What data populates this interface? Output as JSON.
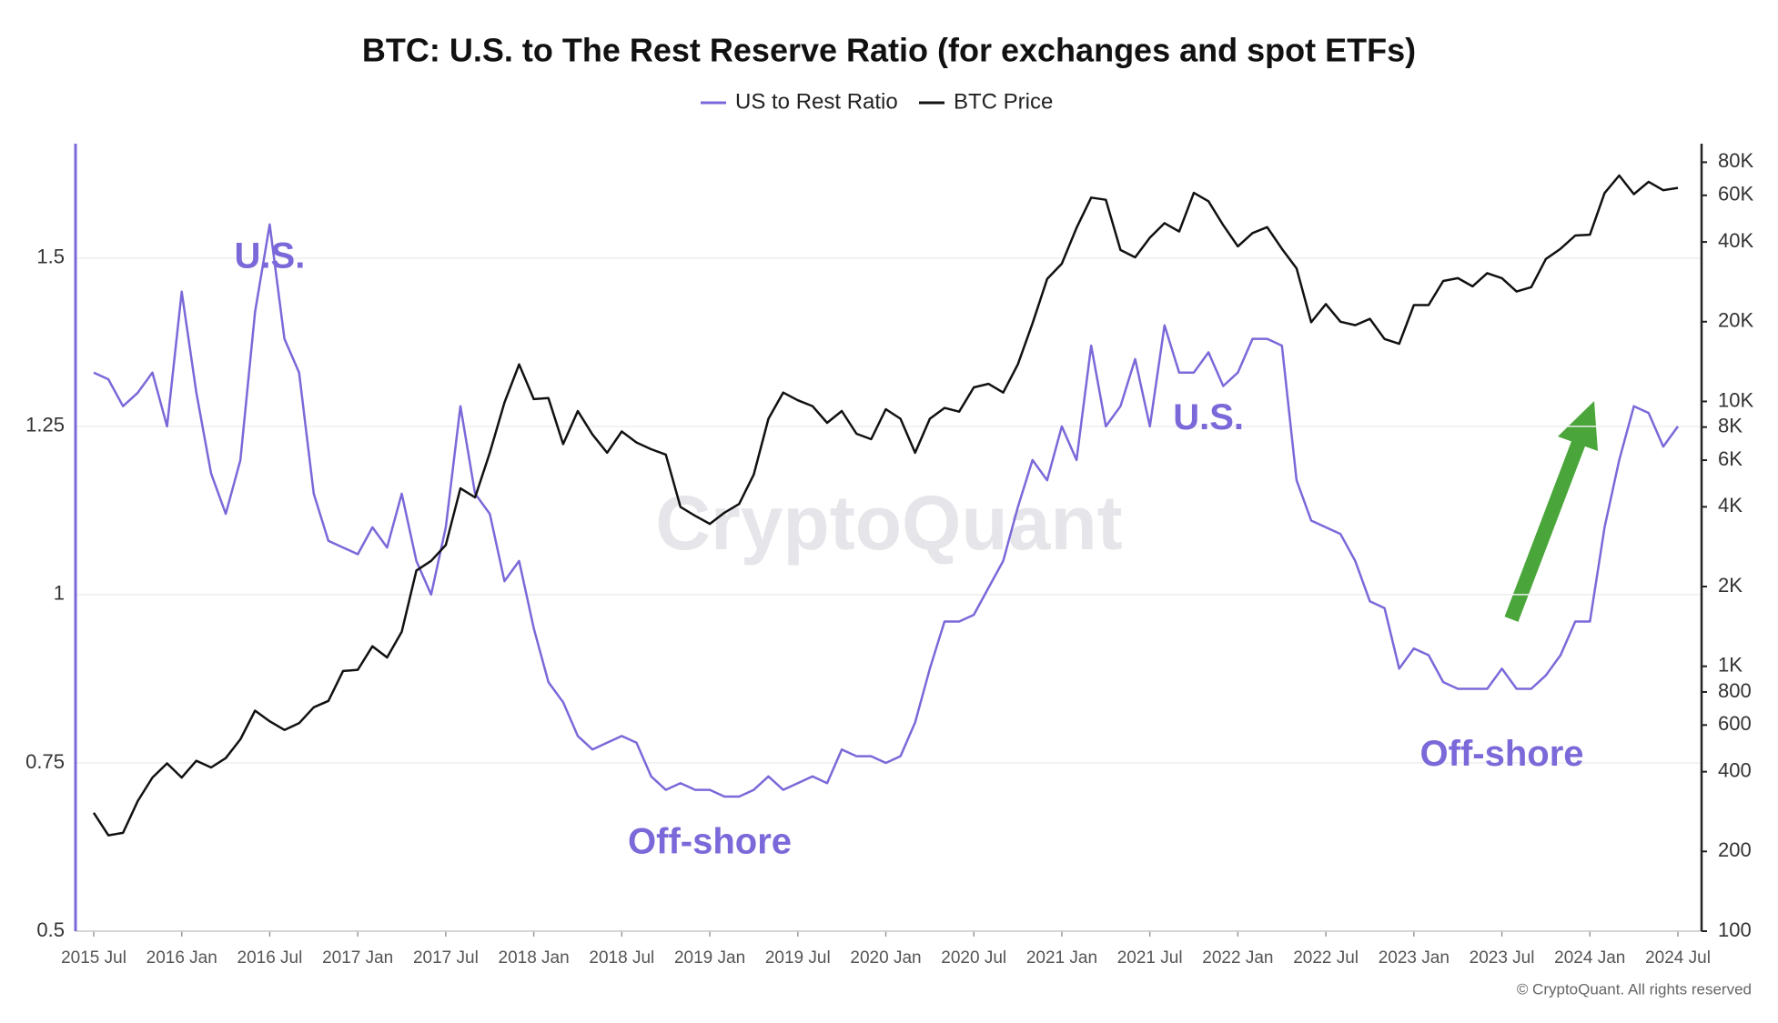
{
  "chart_data": {
    "type": "line",
    "title": "BTC: U.S. to The Rest Reserve Ratio (for exchanges and spot ETFs)",
    "legend": "top",
    "x": [
      "2015-07",
      "2015-08",
      "2015-09",
      "2015-10",
      "2015-11",
      "2015-12",
      "2016-01",
      "2016-02",
      "2016-03",
      "2016-04",
      "2016-05",
      "2016-06",
      "2016-07",
      "2016-08",
      "2016-09",
      "2016-10",
      "2016-11",
      "2016-12",
      "2017-01",
      "2017-02",
      "2017-03",
      "2017-04",
      "2017-05",
      "2017-06",
      "2017-07",
      "2017-08",
      "2017-09",
      "2017-10",
      "2017-11",
      "2017-12",
      "2018-01",
      "2018-02",
      "2018-03",
      "2018-04",
      "2018-05",
      "2018-06",
      "2018-07",
      "2018-08",
      "2018-09",
      "2018-10",
      "2018-11",
      "2018-12",
      "2019-01",
      "2019-02",
      "2019-03",
      "2019-04",
      "2019-05",
      "2019-06",
      "2019-07",
      "2019-08",
      "2019-09",
      "2019-10",
      "2019-11",
      "2019-12",
      "2020-01",
      "2020-02",
      "2020-03",
      "2020-04",
      "2020-05",
      "2020-06",
      "2020-07",
      "2020-08",
      "2020-09",
      "2020-10",
      "2020-11",
      "2020-12",
      "2021-01",
      "2021-02",
      "2021-03",
      "2021-04",
      "2021-05",
      "2021-06",
      "2021-07",
      "2021-08",
      "2021-09",
      "2021-10",
      "2021-11",
      "2021-12",
      "2022-01",
      "2022-02",
      "2022-03",
      "2022-04",
      "2022-05",
      "2022-06",
      "2022-07",
      "2022-08",
      "2022-09",
      "2022-10",
      "2022-11",
      "2022-12",
      "2023-01",
      "2023-02",
      "2023-03",
      "2023-04",
      "2023-05",
      "2023-06",
      "2023-07",
      "2023-08",
      "2023-09",
      "2023-10",
      "2023-11",
      "2023-12",
      "2024-01",
      "2024-02",
      "2024-03",
      "2024-04",
      "2024-05",
      "2024-06",
      "2024-07"
    ],
    "series": [
      {
        "name": "US to Rest Ratio",
        "color": "#7b68d9",
        "axis": "y",
        "values": [
          1.33,
          1.32,
          1.28,
          1.3,
          1.33,
          1.25,
          1.45,
          1.3,
          1.18,
          1.12,
          1.2,
          1.42,
          1.55,
          1.38,
          1.33,
          1.15,
          1.08,
          1.07,
          1.06,
          1.1,
          1.07,
          1.15,
          1.05,
          1.0,
          1.1,
          1.28,
          1.15,
          1.12,
          1.02,
          1.05,
          0.95,
          0.87,
          0.84,
          0.79,
          0.77,
          0.78,
          0.79,
          0.78,
          0.73,
          0.71,
          0.72,
          0.71,
          0.71,
          0.7,
          0.7,
          0.71,
          0.73,
          0.71,
          0.72,
          0.73,
          0.72,
          0.77,
          0.76,
          0.76,
          0.75,
          0.76,
          0.81,
          0.89,
          0.96,
          0.96,
          0.97,
          1.01,
          1.05,
          1.13,
          1.2,
          1.17,
          1.25,
          1.2,
          1.37,
          1.25,
          1.28,
          1.35,
          1.25,
          1.4,
          1.33,
          1.33,
          1.36,
          1.31,
          1.33,
          1.38,
          1.38,
          1.37,
          1.17,
          1.11,
          1.1,
          1.09,
          1.05,
          0.99,
          0.98,
          0.89,
          0.92,
          0.91,
          0.87,
          0.86,
          0.86,
          0.86,
          0.89,
          0.86,
          0.86,
          0.88,
          0.91,
          0.96,
          0.96,
          1.1,
          1.2,
          1.28,
          1.27,
          1.22,
          1.25
        ]
      },
      {
        "name": "BTC Price",
        "color": "#111111",
        "axis": "y2",
        "values": [
          280,
          230,
          235,
          310,
          380,
          430,
          380,
          440,
          415,
          450,
          530,
          680,
          620,
          575,
          610,
          700,
          740,
          960,
          970,
          1190,
          1080,
          1350,
          2300,
          2500,
          2870,
          4700,
          4340,
          6400,
          9900,
          13800,
          10200,
          10300,
          6900,
          9200,
          7500,
          6400,
          7700,
          7000,
          6600,
          6300,
          4000,
          3700,
          3450,
          3800,
          4100,
          5300,
          8600,
          10800,
          10100,
          9600,
          8300,
          9200,
          7550,
          7200,
          9350,
          8600,
          6400,
          8600,
          9450,
          9150,
          11300,
          11650,
          10800,
          13800,
          19700,
          29000,
          33100,
          45200,
          58800,
          57700,
          37300,
          35000,
          41500,
          47100,
          43800,
          61300,
          57000,
          46300,
          38500,
          43200,
          45500,
          37700,
          31800,
          19900,
          23300,
          20000,
          19400,
          20500,
          17200,
          16500,
          23100,
          23100,
          28500,
          29200,
          27200,
          30500,
          29200,
          26000,
          27000,
          34500,
          37700,
          42300,
          42600,
          61200,
          71300,
          60600,
          67500,
          62700,
          64000
        ]
      }
    ],
    "xticks": [
      {
        "value": "2015-07",
        "label": "2015 Jul"
      },
      {
        "value": "2016-01",
        "label": "2016 Jan"
      },
      {
        "value": "2016-07",
        "label": "2016 Jul"
      },
      {
        "value": "2017-01",
        "label": "2017 Jan"
      },
      {
        "value": "2017-07",
        "label": "2017 Jul"
      },
      {
        "value": "2018-01",
        "label": "2018 Jan"
      },
      {
        "value": "2018-07",
        "label": "2018 Jul"
      },
      {
        "value": "2019-01",
        "label": "2019 Jan"
      },
      {
        "value": "2019-07",
        "label": "2019 Jul"
      },
      {
        "value": "2020-01",
        "label": "2020 Jan"
      },
      {
        "value": "2020-07",
        "label": "2020 Jul"
      },
      {
        "value": "2021-01",
        "label": "2021 Jan"
      },
      {
        "value": "2021-07",
        "label": "2021 Jul"
      },
      {
        "value": "2022-01",
        "label": "2022 Jan"
      },
      {
        "value": "2022-07",
        "label": "2022 Jul"
      },
      {
        "value": "2023-01",
        "label": "2023 Jan"
      },
      {
        "value": "2023-07",
        "label": "2023 Jul"
      },
      {
        "value": "2024-01",
        "label": "2024 Jan"
      },
      {
        "value": "2024-07",
        "label": "2024 Jul"
      }
    ],
    "ylim": [
      0.5,
      1.67
    ],
    "yticks": [
      0.5,
      0.75,
      1,
      1.25,
      1.5
    ],
    "y2lim": [
      100,
      94000
    ],
    "y2scale": "log",
    "y2ticks": [
      100,
      200,
      400,
      600,
      800,
      {
        "value": 1000,
        "label": "1K"
      },
      {
        "value": 2000,
        "label": "2K"
      },
      {
        "value": 4000,
        "label": "4K"
      },
      {
        "value": 6000,
        "label": "6K"
      },
      {
        "value": 8000,
        "label": "8K"
      },
      {
        "value": 10000,
        "label": "10K"
      },
      {
        "value": 20000,
        "label": "20K"
      },
      {
        "value": 40000,
        "label": "40K"
      },
      {
        "value": 60000,
        "label": "60K"
      },
      {
        "value": 80000,
        "label": "80K"
      }
    ],
    "grid": true,
    "annotations": [
      {
        "text": "U.S.",
        "x": "2016-07",
        "y": 1.5
      },
      {
        "text": "U.S.",
        "x": "2021-11",
        "y": 1.26
      },
      {
        "text": "Off-shore",
        "x": "2019-01",
        "y": 0.63
      },
      {
        "text": "Off-shore",
        "x": "2023-07",
        "y": 0.76
      }
    ],
    "watermark": "CryptoQuant",
    "footer": "© CryptoQuant. All rights reserved"
  }
}
